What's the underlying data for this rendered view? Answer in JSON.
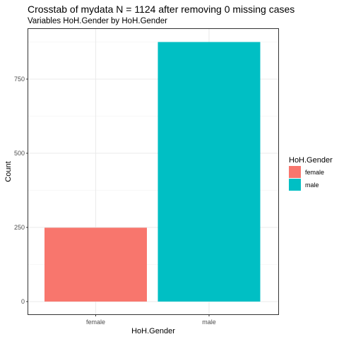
{
  "chart_data": {
    "type": "bar",
    "title": "Crosstab of mydata N = 1124 after removing 0 missing cases",
    "subtitle": "Variables HoH.Gender by HoH.Gender",
    "xlabel": "HoH.Gender",
    "ylabel": "Count",
    "categories": [
      "female",
      "male"
    ],
    "values": [
      249,
      875
    ],
    "colors": [
      "#F8766D",
      "#00BFC4"
    ],
    "ylim": [
      0,
      920
    ],
    "yticks": [
      0,
      250,
      500,
      750
    ],
    "grid": true,
    "legend": {
      "title": "HoH.Gender",
      "position": "right",
      "entries": [
        "female",
        "male"
      ]
    }
  }
}
